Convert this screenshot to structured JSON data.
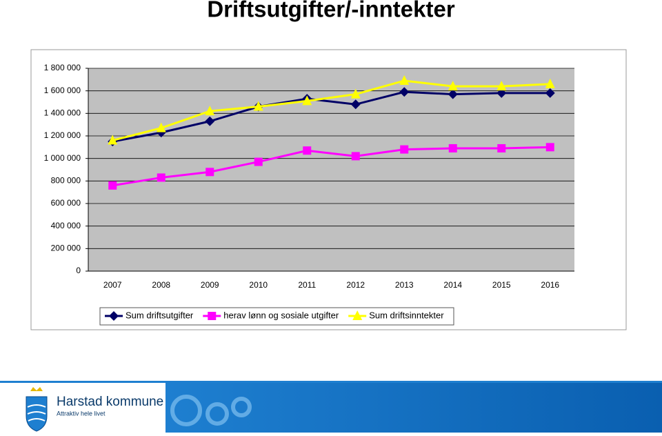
{
  "chart_data": {
    "type": "line",
    "title": "Driftsutgifter/-inntekter",
    "categories": [
      "2007",
      "2008",
      "2009",
      "2010",
      "2011",
      "2012",
      "2013",
      "2014",
      "2015",
      "2016"
    ],
    "series": [
      {
        "name": "Sum driftsutgifter",
        "color": "#000066",
        "marker": "diamond",
        "values": [
          1150000,
          1230000,
          1330000,
          1460000,
          1530000,
          1480000,
          1590000,
          1570000,
          1580000,
          1580000
        ]
      },
      {
        "name": "herav lønn og sosiale utgifter",
        "color": "#ff00ff",
        "marker": "square",
        "values": [
          760000,
          830000,
          880000,
          970000,
          1070000,
          1020000,
          1080000,
          1090000,
          1090000,
          1100000
        ]
      },
      {
        "name": "Sum driftsinntekter",
        "color": "#ffff00",
        "marker": "triangle",
        "values": [
          1160000,
          1270000,
          1420000,
          1460000,
          1510000,
          1570000,
          1690000,
          1640000,
          1640000,
          1660000
        ]
      }
    ],
    "ylim": [
      0,
      1800000
    ],
    "yticks": [
      0,
      {
        "value": 200000,
        "label": "200 000"
      },
      {
        "value": 400000,
        "label": "400 000"
      },
      {
        "value": 600000,
        "label": "600 000"
      },
      {
        "value": 800000,
        "label": "800 000"
      },
      {
        "value": 1000000,
        "label": "1 000 000"
      },
      {
        "value": 1200000,
        "label": "1 200 000"
      },
      {
        "value": 1400000,
        "label": "1 400 000"
      },
      {
        "value": 1600000,
        "label": "1 600 000"
      },
      {
        "value": 1800000,
        "label": "1 800 000"
      }
    ],
    "grid": true,
    "legend": "bottom"
  },
  "footer": {
    "name": "Harstad kommune",
    "slogan": "Attraktiv hele livet"
  }
}
